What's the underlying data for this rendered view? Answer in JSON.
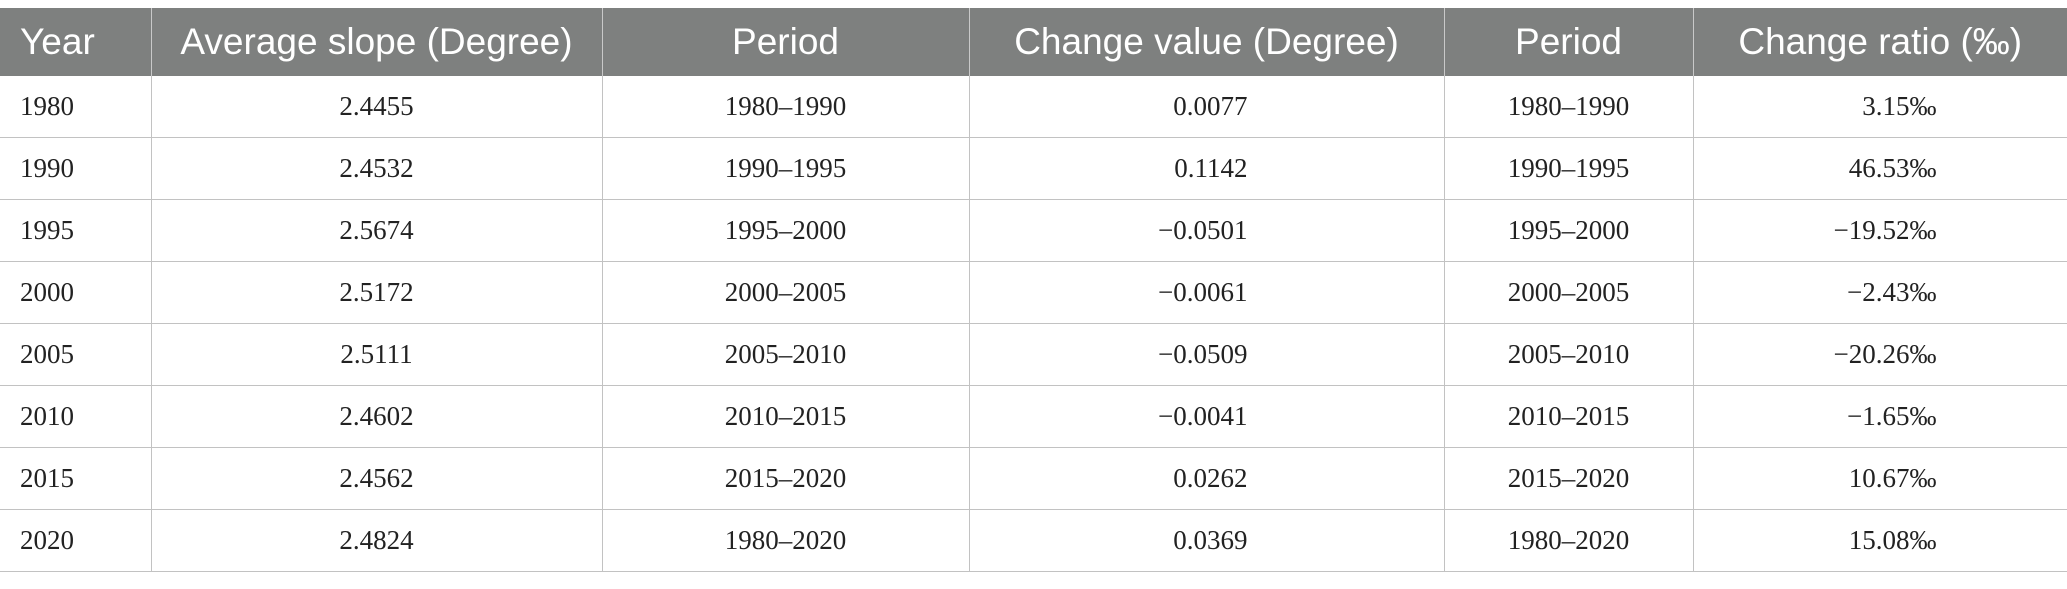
{
  "table": {
    "headers": [
      "Year",
      "Average slope (Degree)",
      "Period",
      "Change value (Degree)",
      "Period",
      "Change ratio (‰)"
    ],
    "rows": [
      [
        "1980",
        "2.4455",
        "1980–1990",
        "0.0077",
        "1980–1990",
        "3.15‰"
      ],
      [
        "1990",
        "2.4532",
        "1990–1995",
        "0.1142",
        "1990–1995",
        "46.53‰"
      ],
      [
        "1995",
        "2.5674",
        "1995–2000",
        "−0.0501",
        "1995–2000",
        "−19.52‰"
      ],
      [
        "2000",
        "2.5172",
        "2000–2005",
        "−0.0061",
        "2000–2005",
        "−2.43‰"
      ],
      [
        "2005",
        "2.5111",
        "2005–2010",
        "−0.0509",
        "2005–2010",
        "−20.26‰"
      ],
      [
        "2010",
        "2.4602",
        "2010–2015",
        "−0.0041",
        "2010–2015",
        "−1.65‰"
      ],
      [
        "2015",
        "2.4562",
        "2015–2020",
        "0.0262",
        "2015–2020",
        "10.67‰"
      ],
      [
        "2020",
        "2.4824",
        "1980–2020",
        "0.0369",
        "1980–2020",
        "15.08‰"
      ]
    ]
  },
  "colors": {
    "header_background": "#7e807f",
    "header_text": "#ffffff",
    "grid_line": "#c2c2c2"
  }
}
